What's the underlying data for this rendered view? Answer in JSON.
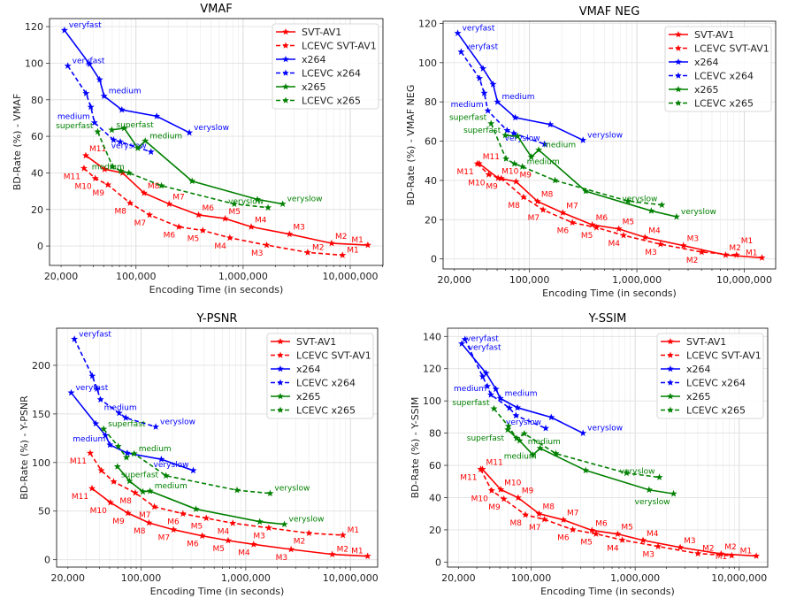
{
  "chart_data": [
    {
      "type": "line",
      "title": "VMAF",
      "xlabel": "Encoding Time (in seconds)",
      "ylabel": "BD-Rate (%) - VMAF",
      "xscale": "log",
      "xlim": [
        15600,
        20200000
      ],
      "ylim": [
        -10.6,
        124.4
      ],
      "xticks": [
        {
          "value": 20000,
          "label": "20,000"
        },
        {
          "value": 100000,
          "label": "100,000"
        },
        {
          "value": 1000000,
          "label": "1,000,000"
        },
        {
          "value": 10000000,
          "label": "10,000,000"
        }
      ],
      "yticks": [
        0,
        20,
        40,
        60,
        80,
        100,
        120
      ],
      "grid": true,
      "legend": "top-right",
      "series": [
        {
          "name": "SVT-AV1",
          "color": "#ff0000",
          "dashed": false,
          "placement": "above-right",
          "x": [
            34000,
            51000,
            75000,
            119000,
            204000,
            384000,
            679000,
            1190000,
            2710000,
            6700000,
            14600000
          ],
          "y": [
            49.5,
            42,
            40,
            29,
            23,
            17,
            15,
            10.5,
            6.5,
            1.5,
            0.5
          ],
          "labels": [
            "M11",
            "",
            "",
            "M8",
            "M7",
            "M6",
            "M5",
            "M4",
            "M3",
            "M2",
            "M1"
          ]
        },
        {
          "name": "LCEVC SVT-AV1",
          "color": "#ff0000",
          "dashed": true,
          "placement": "below-left",
          "x": [
            32700,
            41700,
            54700,
            88000,
            134000,
            251000,
            420000,
            752000,
            1660000,
            4010000,
            8470000
          ],
          "y": [
            42.5,
            37,
            33.5,
            23.5,
            17,
            10.5,
            8.5,
            4.5,
            0.5,
            -3.5,
            -5
          ],
          "labels": [
            "M11",
            "M10",
            "M9",
            "M8",
            "M7",
            "M6",
            "M5",
            "M4",
            "M3",
            "M2",
            "M1"
          ]
        },
        {
          "name": "x264",
          "color": "#0000ff",
          "dashed": false,
          "placement": "right",
          "x": [
            21500,
            36900,
            45800,
            50400,
            73800,
            156000,
            315000
          ],
          "y": [
            118,
            99.5,
            91,
            82,
            74.5,
            71,
            62
          ],
          "labels": [
            "veryfast",
            "",
            "",
            "medium",
            "",
            "",
            "veryslow"
          ]
        },
        {
          "name": "LCEVC x264",
          "color": "#0000ff",
          "dashed": true,
          "placement": "left",
          "x": [
            23100,
            34200,
            37900,
            41000,
            61800,
            71400,
            138000
          ],
          "y": [
            98.5,
            83.5,
            76,
            67.5,
            58,
            57,
            51.5
          ],
          "labels": [
            "veryfast",
            "",
            "",
            "medium",
            "",
            "",
            "veryslow"
          ]
        },
        {
          "name": "x265",
          "color": "#008000",
          "dashed": false,
          "placement": "right",
          "x": [
            59500,
            77600,
            104000,
            122000,
            334000,
            1360000,
            2340000
          ],
          "y": [
            63.5,
            64.5,
            53.5,
            57.5,
            35.5,
            25.5,
            23
          ],
          "labels": [
            "superfast",
            "",
            "",
            "medium",
            "",
            "",
            "veryslow"
          ]
        },
        {
          "name": "LCEVC x265",
          "color": "#008000",
          "dashed": true,
          "placement": "left",
          "x": [
            43900,
            60500,
            72400,
            85900,
            173000,
            826000,
            1710000
          ],
          "y": [
            62.5,
            43.5,
            41,
            40,
            33,
            23,
            21
          ],
          "labels": [
            "superfast",
            "",
            "",
            "medium",
            "",
            "",
            "veryslow"
          ]
        }
      ]
    },
    {
      "type": "line",
      "title": "VMAF NEG",
      "xlabel": "Encoding Time (in seconds)",
      "ylabel": "BD-Rate (%) - VMAF NEG",
      "xscale": "log",
      "xlim": [
        15700,
        19600000
      ],
      "ylim": [
        -5.1,
        121.1
      ],
      "xticks": [
        {
          "value": 20000,
          "label": "20,000"
        },
        {
          "value": 100000,
          "label": "100,000"
        },
        {
          "value": 1000000,
          "label": "1,000,000"
        },
        {
          "value": 10000000,
          "label": "10,000,000"
        }
      ],
      "yticks": [
        0,
        20,
        40,
        60,
        80,
        100,
        120
      ],
      "grid": true,
      "legend": "top-right",
      "series": [
        {
          "name": "SVT-AV1",
          "color": "#ff0000",
          "dashed": false,
          "placement": "above-right",
          "x": [
            34000,
            51000,
            75000,
            119000,
            204000,
            384000,
            679000,
            1190000,
            2710000,
            6700000,
            14600000
          ],
          "y": [
            48.6,
            41.2,
            39.4,
            29.3,
            23.5,
            17.4,
            15.3,
            11,
            6.8,
            2,
            0.6
          ],
          "labels": [
            "M11",
            "M10",
            "M9",
            "M8",
            "M7",
            "M6",
            "M5",
            "M4",
            "M3",
            "M2",
            "M1"
          ]
        },
        {
          "name": "LCEVC SVT-AV1",
          "color": "#ff0000",
          "dashed": true,
          "placement": "below-left",
          "x": [
            32700,
            41700,
            54700,
            88000,
            134000,
            251000,
            420000,
            752000,
            1660000,
            4010000,
            8470000
          ],
          "y": [
            48.5,
            43,
            41,
            31.5,
            25,
            18.5,
            16,
            12,
            7.5,
            3.5,
            2
          ],
          "labels": [
            "M11",
            "M10",
            "M9",
            "M8",
            "M7",
            "M6",
            "M5",
            "M4",
            "M3",
            "M2",
            "M1"
          ]
        },
        {
          "name": "x264",
          "color": "#0000ff",
          "dashed": false,
          "placement": "right",
          "x": [
            21500,
            36900,
            45800,
            50400,
            73800,
            156000,
            315000
          ],
          "y": [
            115,
            97,
            89,
            80,
            72,
            68.5,
            60.5
          ],
          "labels": [
            "veryfast",
            "",
            "",
            "medium",
            "",
            "",
            "veryslow"
          ]
        },
        {
          "name": "LCEVC x264",
          "color": "#0000ff",
          "dashed": true,
          "placement": "left",
          "x": [
            23100,
            34200,
            37900,
            41000,
            61800,
            71400,
            138000
          ],
          "y": [
            105.5,
            92,
            84.5,
            75.5,
            65.5,
            64,
            58.5
          ],
          "labels": [
            "veryfast",
            "",
            "",
            "medium",
            "",
            "",
            "veryslow"
          ]
        },
        {
          "name": "x265",
          "color": "#008000",
          "dashed": false,
          "placement": "right",
          "x": [
            59500,
            77600,
            104000,
            122000,
            334000,
            1360000,
            2340000
          ],
          "y": [
            63,
            62.5,
            52,
            55.5,
            34.5,
            24.5,
            21.5
          ],
          "labels": [
            "superfast",
            "",
            "",
            "medium",
            "",
            "",
            "veryslow"
          ]
        },
        {
          "name": "LCEVC x265",
          "color": "#008000",
          "dashed": true,
          "placement": "left",
          "x": [
            43900,
            60500,
            72400,
            85900,
            173000,
            826000,
            1710000
          ],
          "y": [
            69,
            51,
            48.5,
            47,
            40,
            29.5,
            27.5
          ],
          "labels": [
            "superfast",
            "",
            "",
            "medium",
            "",
            "",
            "veryslow"
          ]
        }
      ]
    },
    {
      "type": "line",
      "title": "Y-PSNR",
      "xlabel": "Encoding Time (in seconds)",
      "ylabel": "BD-Rate (%) - Y-PSNR",
      "xscale": "log",
      "xlim": [
        15600,
        18200000
      ],
      "ylim": [
        -7.6,
        238.2
      ],
      "xticks": [
        {
          "value": 20000,
          "label": "20,000"
        },
        {
          "value": 100000,
          "label": "100,000"
        },
        {
          "value": 1000000,
          "label": "1,000,000"
        },
        {
          "value": 10000000,
          "label": "10,000,000"
        }
      ],
      "yticks": [
        0,
        50,
        100,
        150,
        200
      ],
      "grid": true,
      "legend": "top-right",
      "series": [
        {
          "name": "SVT-AV1",
          "color": "#ff0000",
          "dashed": false,
          "placement": "below-left",
          "x": [
            34000,
            51000,
            75000,
            119000,
            204000,
            384000,
            679000,
            1190000,
            2710000,
            6700000,
            14600000
          ],
          "y": [
            73.3,
            58.8,
            47.9,
            37.9,
            30.9,
            24.5,
            19.7,
            15.8,
            10.6,
            5.5,
            3.6
          ],
          "labels": [
            "M11",
            "M10",
            "M9",
            "M8",
            "M7",
            "M6",
            "M5",
            "M4",
            "M3",
            "M2",
            "M1"
          ]
        },
        {
          "name": "LCEVC SVT-AV1",
          "color": "#ff0000",
          "dashed": true,
          "placement": "below-left",
          "x": [
            32700,
            41700,
            54700,
            88000,
            134000,
            251000,
            420000,
            752000,
            1660000,
            4010000,
            8470000
          ],
          "y": [
            109.7,
            91.8,
            80.3,
            68.8,
            54.5,
            47.3,
            42.7,
            37.6,
            32.7,
            27.3,
            25.2
          ],
          "labels": [
            "M11",
            "",
            "",
            "M8",
            "M7",
            "M6",
            "M5",
            "M4",
            "M3",
            "M2",
            "M1"
          ]
        },
        {
          "name": "x264",
          "color": "#0000ff",
          "dashed": false,
          "placement": "left",
          "x": [
            21500,
            36900,
            45800,
            50400,
            73800,
            156000,
            315000
          ],
          "y": [
            171.8,
            140,
            127.9,
            118.2,
            109.7,
            103.3,
            91.8
          ],
          "labels": [
            "veryfast",
            "",
            "",
            "medium",
            "",
            "",
            "veryslow"
          ]
        },
        {
          "name": "LCEVC x264",
          "color": "#0000ff",
          "dashed": true,
          "placement": "right",
          "x": [
            23100,
            34200,
            37900,
            41000,
            61800,
            71400,
            138000
          ],
          "y": [
            227,
            189,
            175.8,
            164.8,
            150.9,
            146,
            136.7
          ],
          "labels": [
            "veryfast",
            "",
            "",
            "medium",
            "",
            "",
            "veryslow"
          ]
        },
        {
          "name": "x265",
          "color": "#008000",
          "dashed": false,
          "placement": "right",
          "x": [
            59500,
            77600,
            104000,
            122000,
            334000,
            1360000,
            2340000
          ],
          "y": [
            95.8,
            80.9,
            70,
            70.6,
            52.1,
            39.1,
            36.4
          ],
          "labels": [
            "superfast",
            "",
            "",
            "medium",
            "",
            "",
            "veryslow"
          ]
        },
        {
          "name": "LCEVC x265",
          "color": "#008000",
          "dashed": true,
          "placement": "right",
          "x": [
            43900,
            60500,
            72400,
            85900,
            173000,
            826000,
            1710000
          ],
          "y": [
            134.5,
            116.7,
            105.2,
            109.1,
            86.4,
            71.5,
            68.2
          ],
          "labels": [
            "superfast",
            "",
            "",
            "medium",
            "",
            "",
            "veryslow"
          ]
        }
      ]
    },
    {
      "type": "line",
      "title": "Y-SSIM",
      "xlabel": "Encoding Time (in seconds)",
      "ylabel": "BD-Rate (%) - Y-SSIM",
      "xscale": "log",
      "xlim": [
        15700,
        18800000
      ],
      "ylim": [
        -3.1,
        145.1
      ],
      "xticks": [
        {
          "value": 20000,
          "label": "20,000"
        },
        {
          "value": 100000,
          "label": "100,000"
        },
        {
          "value": 1000000,
          "label": "1,000,000"
        },
        {
          "value": 10000000,
          "label": "10,000,000"
        }
      ],
      "yticks": [
        0,
        20,
        40,
        60,
        80,
        100,
        120,
        140
      ],
      "grid": true,
      "legend": "top-right",
      "series": [
        {
          "name": "SVT-AV1",
          "color": "#ff0000",
          "dashed": false,
          "placement": "above-right",
          "x": [
            34000,
            51000,
            75000,
            119000,
            204000,
            384000,
            679000,
            1190000,
            2710000,
            6700000,
            14600000
          ],
          "y": [
            57.6,
            45,
            39.9,
            30,
            26.2,
            19.7,
            17.4,
            13.5,
            9.1,
            5.1,
            3.8
          ],
          "labels": [
            "M11",
            "M10",
            "M9",
            "M8",
            "M7",
            "M6",
            "M5",
            "M4",
            "M3",
            "M2",
            "M1"
          ]
        },
        {
          "name": "LCEVC SVT-AV1",
          "color": "#ff0000",
          "dashed": true,
          "placement": "below-left",
          "x": [
            32700,
            41700,
            54700,
            88000,
            134000,
            251000,
            420000,
            752000,
            1660000,
            4010000,
            8470000
          ],
          "y": [
            57.6,
            44.4,
            39.1,
            29.3,
            26.5,
            20.1,
            17.5,
            13.7,
            9.7,
            5.3,
            4
          ],
          "labels": [
            "M11",
            "M10",
            "M9",
            "M8",
            "M7",
            "M6",
            "M5",
            "M4",
            "M3",
            "M2",
            "M1"
          ]
        },
        {
          "name": "x264",
          "color": "#0000ff",
          "dashed": false,
          "placement": "right",
          "x": [
            21500,
            36900,
            45800,
            50400,
            73800,
            156000,
            315000
          ],
          "y": [
            135.5,
            117.2,
            107.3,
            101.6,
            95.8,
            89.8,
            80
          ],
          "labels": [
            "veryfast",
            "",
            "",
            "medium",
            "",
            "",
            "veryslow"
          ]
        },
        {
          "name": "LCEVC x264",
          "color": "#0000ff",
          "dashed": true,
          "placement": "left",
          "x": [
            23100,
            34200,
            37900,
            41000,
            61800,
            71400,
            138000
          ],
          "y": [
            138.2,
            115,
            109.1,
            103.8,
            95.6,
            90.9,
            83
          ],
          "labels": [
            "veryfast",
            "",
            "",
            "medium",
            "",
            "",
            "veryslow"
          ]
        },
        {
          "name": "x265",
          "color": "#008000",
          "dashed": false,
          "placement": "below-left",
          "x": [
            59500,
            77600,
            104000,
            122000,
            334000,
            1360000,
            2340000
          ],
          "y": [
            82.1,
            75.3,
            66.5,
            70.6,
            56.9,
            44.8,
            42.4
          ],
          "labels": [
            "superfast",
            "",
            "",
            "medium",
            "",
            "",
            "veryslow"
          ]
        },
        {
          "name": "LCEVC x265",
          "color": "#008000",
          "dashed": true,
          "placement": "left",
          "x": [
            43900,
            60500,
            72400,
            85900,
            173000,
            826000,
            1710000
          ],
          "y": [
            95.2,
            84.3,
            76.8,
            79.7,
            67.3,
            55.2,
            52.6
          ],
          "labels": [
            "superfast",
            "",
            "",
            "medium",
            "",
            "",
            "veryslow"
          ]
        }
      ]
    }
  ]
}
